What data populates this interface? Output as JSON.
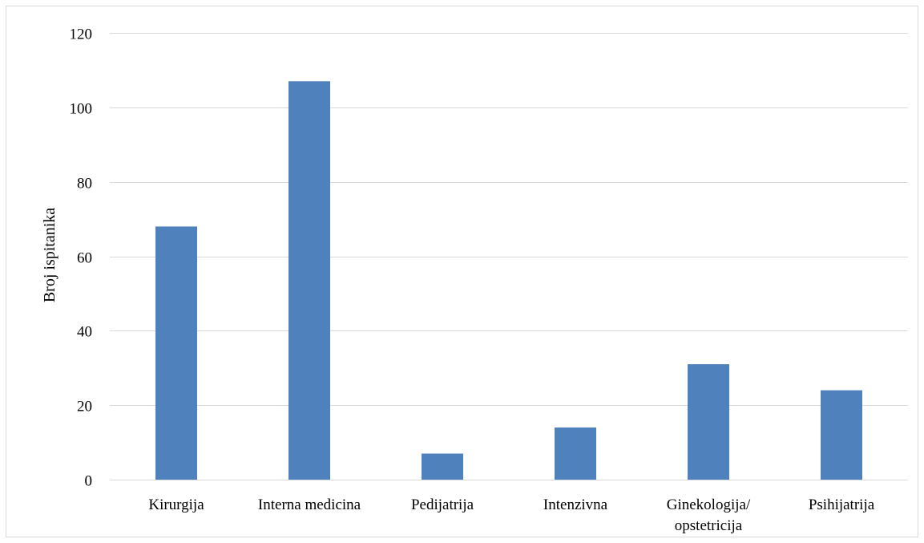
{
  "chart_data": {
    "type": "bar",
    "title": "",
    "xlabel": "",
    "ylabel": "Broj ispitanika",
    "categories": [
      [
        "Kirurgija"
      ],
      [
        "Interna medicina"
      ],
      [
        "Pedijatrija"
      ],
      [
        "Intenzivna"
      ],
      [
        "Ginekologija/",
        "opstetricija"
      ],
      [
        "Psihijatrija"
      ]
    ],
    "values": [
      68,
      107,
      7,
      14,
      31,
      24
    ],
    "ylim": [
      0,
      120
    ],
    "yticks": [
      0,
      20,
      40,
      60,
      80,
      100,
      120
    ],
    "grid": true,
    "legend": "none",
    "bar_color": "#4f81bd",
    "grid_color": "#d9d9d9"
  }
}
